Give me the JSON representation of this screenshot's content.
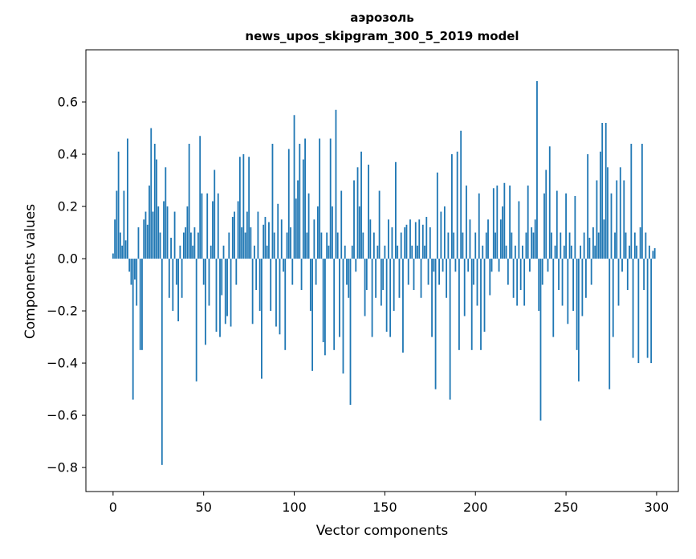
{
  "chart_data": {
    "type": "bar",
    "title_line1": "аэрозоль",
    "title_line2": "news_upos_skipgram_300_5_2019 model",
    "xlabel": "Vector components",
    "ylabel": "Components values",
    "bar_color": "#1f77b4",
    "spine_color": "#000000",
    "grid": false,
    "legend": "none",
    "xlim": [
      -15,
      312
    ],
    "ylim": [
      -0.892,
      0.8
    ],
    "x_ticks": [
      0,
      50,
      100,
      150,
      200,
      250,
      300
    ],
    "x_tick_labels": [
      "0",
      "50",
      "100",
      "150",
      "200",
      "250",
      "300"
    ],
    "y_ticks": [
      0.6,
      0.4,
      0.2,
      0.0,
      -0.2,
      -0.4,
      -0.6,
      -0.8
    ],
    "y_tick_labels": [
      "0.6",
      "0.4",
      "0.2",
      "0.0",
      "−0.2",
      "−0.4",
      "−0.6",
      "−0.8"
    ],
    "values": [
      0.02,
      0.15,
      0.26,
      0.41,
      0.1,
      0.05,
      0.26,
      0.07,
      0.46,
      -0.05,
      -0.1,
      -0.54,
      -0.08,
      -0.18,
      0.12,
      -0.35,
      -0.35,
      0.15,
      0.18,
      0.13,
      0.28,
      0.5,
      0.18,
      0.44,
      0.38,
      0.2,
      0.1,
      -0.79,
      0.22,
      0.35,
      0.2,
      -0.15,
      0.08,
      -0.2,
      0.18,
      -0.1,
      -0.24,
      0.05,
      -0.15,
      0.1,
      0.12,
      0.2,
      0.44,
      0.1,
      0.05,
      0.12,
      -0.47,
      0.1,
      0.47,
      0.25,
      -0.1,
      -0.33,
      0.25,
      -0.18,
      0.05,
      0.22,
      0.34,
      -0.28,
      0.25,
      -0.3,
      -0.14,
      0.05,
      -0.25,
      -0.22,
      0.1,
      -0.26,
      0.16,
      0.18,
      -0.1,
      0.22,
      0.39,
      0.12,
      0.4,
      0.1,
      0.18,
      0.39,
      0.12,
      -0.25,
      0.05,
      -0.12,
      0.18,
      -0.2,
      -0.46,
      0.13,
      0.16,
      0.05,
      0.14,
      -0.2,
      0.44,
      0.1,
      -0.26,
      0.21,
      -0.29,
      0.15,
      -0.05,
      -0.35,
      0.1,
      0.42,
      0.12,
      -0.1,
      0.55,
      0.23,
      0.3,
      0.44,
      -0.12,
      0.38,
      0.46,
      0.1,
      0.25,
      -0.2,
      -0.43,
      0.15,
      -0.1,
      0.2,
      0.46,
      0.1,
      -0.32,
      -0.37,
      0.1,
      0.05,
      0.46,
      0.2,
      -0.35,
      0.57,
      0.1,
      -0.3,
      0.26,
      -0.44,
      0.05,
      -0.1,
      -0.15,
      -0.56,
      0.05,
      0.3,
      -0.05,
      0.35,
      0.2,
      0.41,
      0.1,
      -0.22,
      -0.12,
      0.36,
      0.15,
      -0.3,
      0.1,
      -0.15,
      0.05,
      0.26,
      -0.18,
      -0.12,
      0.05,
      -0.28,
      0.15,
      -0.3,
      0.12,
      -0.2,
      0.37,
      0.05,
      -0.15,
      0.1,
      -0.36,
      0.12,
      0.13,
      -0.1,
      0.15,
      0.05,
      -0.12,
      0.14,
      0.05,
      0.15,
      -0.15,
      0.13,
      0.05,
      0.16,
      -0.1,
      0.12,
      -0.3,
      -0.05,
      -0.5,
      0.33,
      -0.1,
      0.18,
      -0.05,
      0.2,
      -0.15,
      0.1,
      -0.54,
      0.4,
      0.1,
      -0.05,
      0.41,
      -0.35,
      0.49,
      0.1,
      -0.22,
      0.28,
      -0.05,
      0.15,
      -0.35,
      -0.1,
      0.1,
      -0.18,
      0.25,
      -0.35,
      0.05,
      -0.28,
      0.1,
      0.15,
      -0.14,
      -0.05,
      0.27,
      0.1,
      0.28,
      -0.05,
      0.15,
      0.2,
      0.29,
      0.05,
      -0.1,
      0.28,
      0.1,
      -0.15,
      0.05,
      -0.18,
      0.22,
      -0.12,
      0.05,
      -0.18,
      0.1,
      0.28,
      -0.05,
      0.12,
      0.1,
      0.15,
      0.68,
      -0.2,
      -0.62,
      -0.1,
      0.25,
      0.34,
      -0.05,
      0.43,
      0.1,
      -0.3,
      0.05,
      0.26,
      -0.12,
      0.1,
      -0.18,
      0.05,
      0.25,
      -0.25,
      0.1,
      0.05,
      -0.2,
      0.24,
      -0.35,
      -0.47,
      0.05,
      -0.22,
      0.1,
      -0.15,
      0.4,
      0.08,
      -0.1,
      0.12,
      0.05,
      0.3,
      0.1,
      0.41,
      0.52,
      0.15,
      0.52,
      0.35,
      -0.5,
      0.25,
      -0.3,
      0.1,
      0.3,
      -0.18,
      0.35,
      -0.05,
      0.3,
      0.1,
      -0.12,
      0.05,
      0.44,
      -0.38,
      0.1,
      0.05,
      -0.4,
      0.12,
      0.44,
      -0.12,
      0.1,
      -0.38,
      0.05,
      -0.4,
      0.03,
      0.04
    ]
  }
}
